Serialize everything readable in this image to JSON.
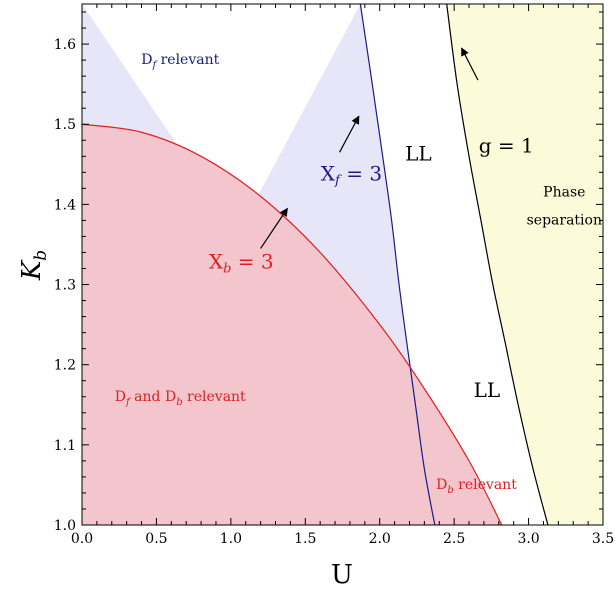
{
  "chart_data": {
    "type": "area",
    "xlabel": "U",
    "ylabel": "K",
    "ylabel_sub": "b",
    "xlim": [
      0.0,
      3.5
    ],
    "ylim": [
      1.0,
      1.65
    ],
    "xticks": [
      "0.0",
      "0.5",
      "1.0",
      "1.5",
      "2.0",
      "2.5",
      "3.0",
      "3.5"
    ],
    "yticks": [
      "1.0",
      "1.1",
      "1.2",
      "1.3",
      "1.4",
      "1.5",
      "1.6"
    ],
    "colors": {
      "df_region": "#e6e6f8",
      "db_region": "#f2c6cc",
      "phase_region": "#fbfbd9",
      "xf_curve": "#1a1a8c",
      "xb_curve": "#e02020",
      "g_curve": "#000000",
      "xf_text": "#1a1a8c",
      "xb_text": "#e02020"
    },
    "series": [
      {
        "key": "xf",
        "x": [
          1.87,
          1.95,
          2.02,
          2.08,
          2.13,
          2.18,
          2.24,
          2.3,
          2.37
        ],
        "y": [
          1.65,
          1.55,
          1.46,
          1.38,
          1.3,
          1.23,
          1.15,
          1.07,
          1.0
        ]
      },
      {
        "key": "xb",
        "x": [
          0.0,
          0.4,
          0.8,
          1.2,
          1.6,
          2.0,
          2.3,
          2.6,
          2.82
        ],
        "y": [
          1.5,
          1.49,
          1.46,
          1.41,
          1.34,
          1.25,
          1.17,
          1.08,
          1.0
        ]
      },
      {
        "key": "g",
        "x": [
          2.45,
          2.52,
          2.6,
          2.68,
          2.76,
          2.84,
          2.93,
          3.03,
          3.13
        ],
        "y": [
          1.65,
          1.55,
          1.46,
          1.38,
          1.3,
          1.23,
          1.15,
          1.07,
          1.0
        ]
      }
    ],
    "annotations": [
      {
        "key": "df",
        "main": "D",
        "sub": "f",
        "rest": " relevant",
        "x": 0.66,
        "y": 1.575,
        "color": "#1a1a8c",
        "size": "small"
      },
      {
        "key": "dfdb",
        "main": "D",
        "sub": "f",
        "rest": " and D",
        "sub2": "b",
        "rest2": " relevant",
        "x": 0.66,
        "y": 1.155,
        "color": "#e02020",
        "size": "small"
      },
      {
        "key": "db",
        "main": "D",
        "sub": "b",
        "rest": " relevant",
        "x": 2.65,
        "y": 1.045,
        "color": "#e02020",
        "size": "small"
      },
      {
        "key": "ll1",
        "main": "LL",
        "x": 2.26,
        "y": 1.455,
        "color": "#000000",
        "size": "big"
      },
      {
        "key": "ll2",
        "main": "LL",
        "x": 2.72,
        "y": 1.16,
        "color": "#000000",
        "size": "big"
      },
      {
        "key": "g1",
        "main": "g = 1",
        "x": 2.85,
        "y": 1.465,
        "color": "#000000",
        "size": "big"
      },
      {
        "key": "xf3",
        "main": "X",
        "sub": "f",
        "rest": " = 3",
        "x": 1.81,
        "y": 1.43,
        "color": "#1a1a8c",
        "size": "big"
      },
      {
        "key": "xb3",
        "main": "X",
        "sub": "b",
        "rest": " = 3",
        "x": 1.07,
        "y": 1.32,
        "color": "#e02020",
        "size": "big"
      },
      {
        "key": "phase1",
        "main": "Phase",
        "x": 3.24,
        "y": 1.41,
        "color": "#000000",
        "size": "small"
      },
      {
        "key": "phase2",
        "main": "separation",
        "x": 3.24,
        "y": 1.375,
        "color": "#000000",
        "size": "small"
      }
    ],
    "arrows": [
      {
        "key": "arrow-xf",
        "from": [
          1.73,
          1.465
        ],
        "to": [
          1.86,
          1.51
        ],
        "color": "#000000"
      },
      {
        "key": "arrow-xb",
        "from": [
          1.2,
          1.345
        ],
        "to": [
          1.38,
          1.395
        ],
        "color": "#000000"
      },
      {
        "key": "arrow-g",
        "from": [
          2.66,
          1.555
        ],
        "to": [
          2.55,
          1.595
        ],
        "color": "#000000"
      }
    ]
  }
}
